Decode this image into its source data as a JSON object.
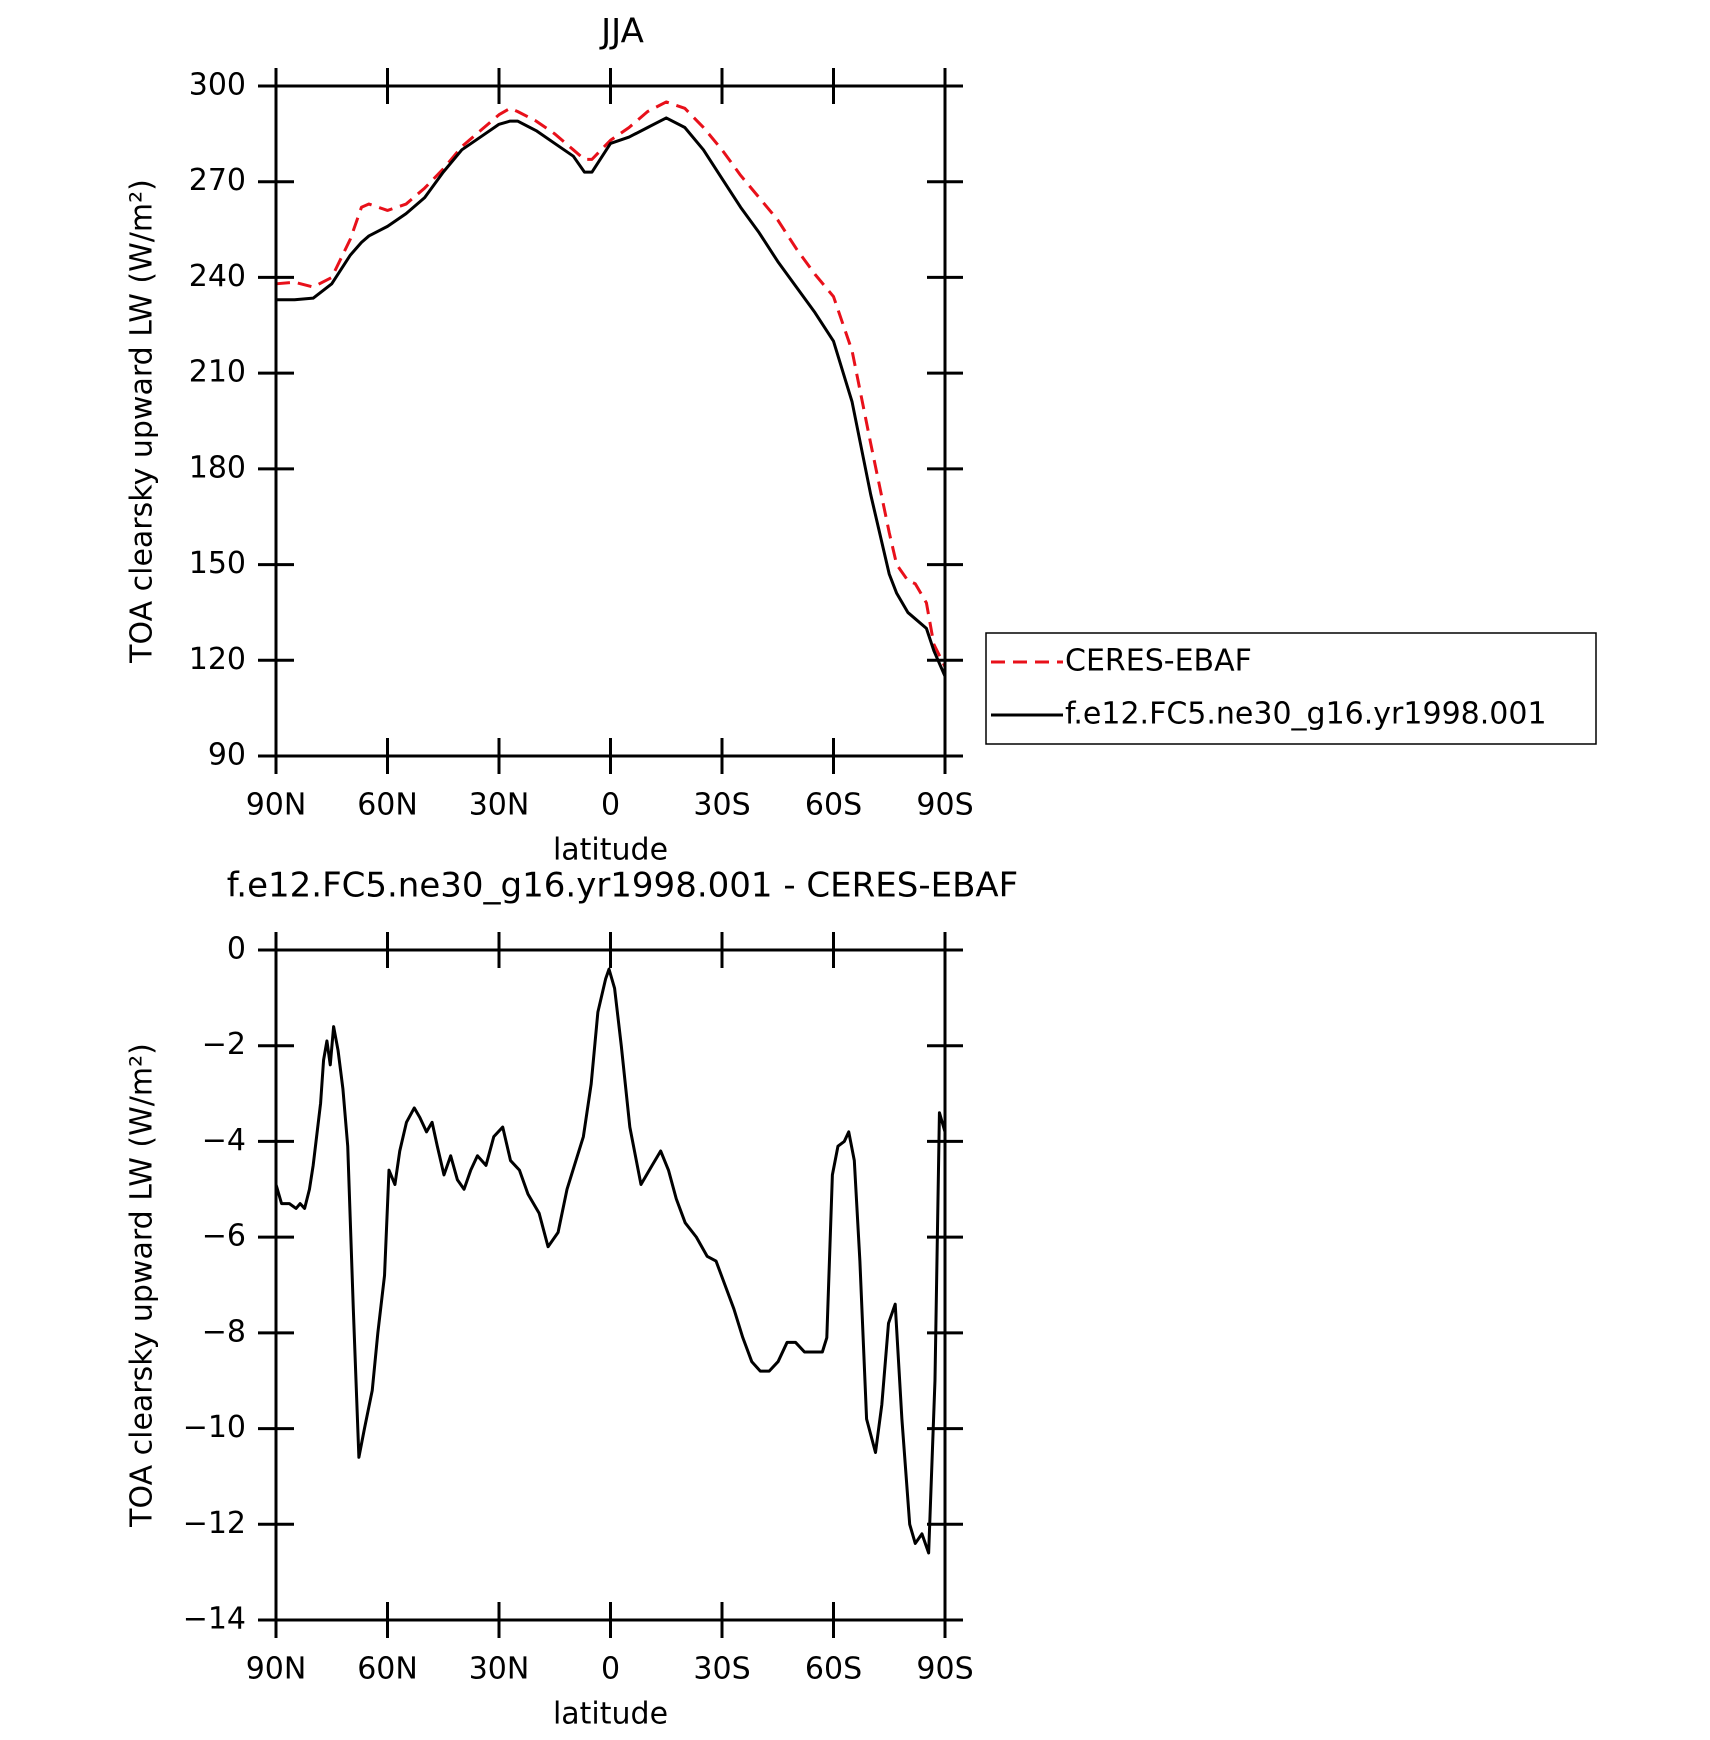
{
  "chart_data": [
    {
      "type": "line",
      "title": "JJA",
      "xlabel": "latitude",
      "ylabel": "TOA clearsky upward LW (W/m²)",
      "xlim": [
        90,
        -90
      ],
      "xticks": [
        {
          "value": 90,
          "label": "90N"
        },
        {
          "value": 60,
          "label": "60N"
        },
        {
          "value": 30,
          "label": "30N"
        },
        0,
        {
          "value": -30,
          "label": "30S"
        },
        {
          "value": -60,
          "label": "60S"
        },
        {
          "value": -90,
          "label": "90S"
        }
      ],
      "ylim": [
        90,
        300
      ],
      "yticks": [
        90,
        120,
        150,
        180,
        210,
        240,
        270,
        300
      ],
      "legend": "right",
      "x": [
        90,
        85,
        80,
        75,
        70,
        67,
        65,
        60,
        55,
        50,
        45,
        40,
        35,
        30,
        27,
        25,
        20,
        15,
        10,
        7,
        5,
        0,
        -5,
        -10,
        -15,
        -20,
        -25,
        -30,
        -35,
        -40,
        -45,
        -50,
        -55,
        -60,
        -65,
        -70,
        -75,
        -77,
        -80,
        -82,
        -85,
        -87,
        -90
      ],
      "series": [
        {
          "name": "CERES-EBAF",
          "color": "#e8101a",
          "linestyle": "dashed",
          "values": [
            238,
            238.5,
            237,
            240,
            252,
            262,
            263,
            261,
            263,
            268,
            274,
            281,
            286,
            291,
            293,
            292,
            289,
            285,
            280,
            277,
            277,
            283,
            287,
            292,
            295,
            293,
            287,
            280,
            272,
            265,
            258,
            249,
            241,
            234,
            217,
            188,
            160,
            150,
            145,
            144,
            138,
            125,
            118
          ]
        },
        {
          "name": "f.e12.FC5.ne30_g16.yr1998.001",
          "color": "#000000",
          "linestyle": "solid",
          "values": [
            233,
            233,
            233.5,
            238,
            247,
            251,
            253,
            256,
            260,
            265,
            273,
            280,
            284,
            288,
            289,
            289,
            286,
            282,
            278,
            273,
            273,
            282,
            284,
            287,
            290,
            287,
            280,
            271,
            262,
            254,
            245,
            237,
            229,
            220,
            201,
            172,
            147,
            141,
            135,
            133,
            130,
            123,
            115
          ]
        }
      ]
    },
    {
      "type": "line",
      "title": "f.e12.FC5.ne30_g16.yr1998.001 - CERES-EBAF",
      "xlabel": "latitude",
      "ylabel": "TOA clearsky upward LW (W/m²)",
      "xlim": [
        90,
        -90
      ],
      "xticks": [
        {
          "value": 90,
          "label": "90N"
        },
        {
          "value": 60,
          "label": "60N"
        },
        {
          "value": 30,
          "label": "30N"
        },
        0,
        {
          "value": -30,
          "label": "30S"
        },
        {
          "value": -60,
          "label": "60S"
        },
        {
          "value": -90,
          "label": "90S"
        }
      ],
      "ylim": [
        -14,
        0
      ],
      "yticks": [
        {
          "value": -14,
          "label": "−14"
        },
        {
          "value": -12,
          "label": "−12"
        },
        {
          "value": -10,
          "label": "−10"
        },
        {
          "value": -8,
          "label": "−8"
        },
        {
          "value": -6,
          "label": "−6"
        },
        {
          "value": -4,
          "label": "−4"
        },
        {
          "value": -2,
          "label": "−2"
        },
        0
      ],
      "x": [
        90,
        88.5,
        86.4,
        84.6,
        83.5,
        82.3,
        81,
        80,
        78,
        77.2,
        76.3,
        75.4,
        74.5,
        73.3,
        72,
        70.7,
        69.2,
        67.7,
        66.2,
        64.1,
        62.6,
        60.8,
        59.6,
        58,
        56.7,
        54.9,
        52.8,
        51.3,
        49.5,
        48,
        46.6,
        44.8,
        43,
        41.2,
        39.4,
        37.6,
        35.8,
        33.5,
        31.4,
        29,
        26.9,
        24.5,
        22.2,
        19.2,
        16.8,
        14.1,
        11.7,
        9.7,
        7.3,
        5.2,
        3.4,
        1.3,
        0.4,
        -1.1,
        -2.9,
        -5.2,
        -8.2,
        -11.2,
        -13.5,
        -15.6,
        -17.7,
        -20.1,
        -23.1,
        -26,
        -28.4,
        -30.8,
        -33.2,
        -35.6,
        -38,
        -40.3,
        -42.7,
        -45.1,
        -47.5,
        -49.8,
        -52.2,
        -54.6,
        -57,
        -58.2,
        -59.7,
        -61.2,
        -62.9,
        -64.1,
        -65.6,
        -67.1,
        -68.9,
        -71.3,
        -73,
        -74.8,
        -76.6,
        -78.4,
        -80.5,
        -82,
        -83.8,
        -85.6,
        -87.3,
        -88.5,
        -90
      ],
      "series": [
        {
          "color": "#000000",
          "linestyle": "solid",
          "values": [
            -4.9,
            -5.3,
            -5.3,
            -5.4,
            -5.3,
            -5.4,
            -5.0,
            -4.5,
            -3.2,
            -2.3,
            -1.9,
            -2.4,
            -1.6,
            -2.1,
            -2.9,
            -4.1,
            -7.5,
            -10.6,
            -10.0,
            -9.2,
            -8.0,
            -6.8,
            -4.6,
            -4.9,
            -4.2,
            -3.6,
            -3.3,
            -3.5,
            -3.8,
            -3.6,
            -4.1,
            -4.7,
            -4.3,
            -4.8,
            -5.0,
            -4.6,
            -4.3,
            -4.5,
            -3.9,
            -3.7,
            -4.4,
            -4.6,
            -5.1,
            -5.5,
            -6.2,
            -5.9,
            -5.0,
            -4.5,
            -3.9,
            -2.8,
            -1.3,
            -0.6,
            -0.4,
            -0.8,
            -2.0,
            -3.7,
            -4.9,
            -4.5,
            -4.2,
            -4.6,
            -5.2,
            -5.7,
            -6.0,
            -6.4,
            -6.5,
            -7.0,
            -7.5,
            -8.1,
            -8.6,
            -8.8,
            -8.8,
            -8.6,
            -8.2,
            -8.2,
            -8.4,
            -8.4,
            -8.4,
            -8.1,
            -4.7,
            -4.1,
            -4.0,
            -3.8,
            -4.4,
            -6.5,
            -9.8,
            -10.5,
            -9.5,
            -7.8,
            -7.4,
            -9.8,
            -12.0,
            -12.4,
            -12.2,
            -12.6,
            -9.0,
            -3.4,
            -3.8
          ]
        }
      ]
    }
  ]
}
